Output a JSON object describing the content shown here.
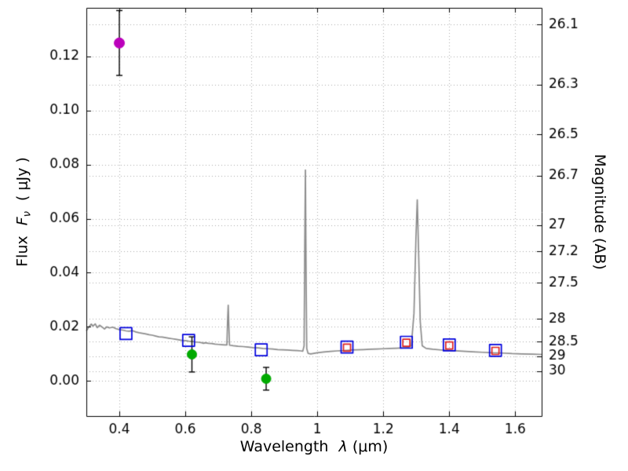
{
  "figure": {
    "xlabel": {
      "prefix": "Wavelength",
      "symbol": "λ",
      "suffix": "(μm)"
    },
    "ylabel_left": {
      "prefix": "Flux",
      "symbol": "F",
      "symbol_sub": "ν",
      "suffix": "( μJy )"
    },
    "ylabel_right": "Magnitude (AB)"
  },
  "chart_data": {
    "type": "line+scatter",
    "title": "",
    "xlabel": "Wavelength λ (μm)",
    "ylabel": "Flux Fν ( μJy )",
    "ylabel_right": "Magnitude (AB)",
    "xlim": [
      0.3,
      1.68
    ],
    "ylim": [
      -0.013,
      0.138
    ],
    "grid": true,
    "mag_zero_point": 23.9,
    "x_ticks": [
      {
        "v": 0.4,
        "label": "0.4"
      },
      {
        "v": 0.6,
        "label": "0.6"
      },
      {
        "v": 0.8,
        "label": "0.8"
      },
      {
        "v": 1.0,
        "label": "1"
      },
      {
        "v": 1.2,
        "label": "1.2"
      },
      {
        "v": 1.4,
        "label": "1.4"
      },
      {
        "v": 1.6,
        "label": "1.6"
      }
    ],
    "y_ticks_left": [
      {
        "v": 0.0,
        "label": "0.00"
      },
      {
        "v": 0.02,
        "label": "0.02"
      },
      {
        "v": 0.04,
        "label": "0.04"
      },
      {
        "v": 0.06,
        "label": "0.06"
      },
      {
        "v": 0.08,
        "label": "0.08"
      },
      {
        "v": 0.1,
        "label": "0.10"
      },
      {
        "v": 0.12,
        "label": "0.12"
      }
    ],
    "y_ticks_right": [
      {
        "v": 26.1,
        "label": "26.1"
      },
      {
        "v": 26.3,
        "label": "26.3"
      },
      {
        "v": 26.5,
        "label": "26.5"
      },
      {
        "v": 26.7,
        "label": "26.7"
      },
      {
        "v": 27.0,
        "label": "27"
      },
      {
        "v": 27.2,
        "label": "27.2"
      },
      {
        "v": 27.5,
        "label": "27.5"
      },
      {
        "v": 28.0,
        "label": "28"
      },
      {
        "v": 28.5,
        "label": "28.5"
      },
      {
        "v": 29.0,
        "label": "29"
      },
      {
        "v": 30.0,
        "label": "30"
      }
    ],
    "spectrum": {
      "name": "model-spectrum",
      "color": "#8c8c8c",
      "points": [
        [
          0.3,
          0.0185
        ],
        [
          0.308,
          0.02
        ],
        [
          0.315,
          0.021
        ],
        [
          0.32,
          0.0203
        ],
        [
          0.327,
          0.0211
        ],
        [
          0.333,
          0.0197
        ],
        [
          0.34,
          0.0206
        ],
        [
          0.348,
          0.0199
        ],
        [
          0.355,
          0.0192
        ],
        [
          0.362,
          0.02
        ],
        [
          0.37,
          0.0196
        ],
        [
          0.38,
          0.0199
        ],
        [
          0.39,
          0.0193
        ],
        [
          0.4,
          0.019
        ],
        [
          0.41,
          0.0188
        ],
        [
          0.42,
          0.0185
        ],
        [
          0.43,
          0.0184
        ],
        [
          0.44,
          0.0186
        ],
        [
          0.45,
          0.0181
        ],
        [
          0.46,
          0.0178
        ],
        [
          0.47,
          0.0176
        ],
        [
          0.48,
          0.0174
        ],
        [
          0.49,
          0.0171
        ],
        [
          0.5,
          0.0169
        ],
        [
          0.51,
          0.0166
        ],
        [
          0.52,
          0.0163
        ],
        [
          0.53,
          0.0162
        ],
        [
          0.54,
          0.016
        ],
        [
          0.55,
          0.0158
        ],
        [
          0.56,
          0.0156
        ],
        [
          0.57,
          0.0154
        ],
        [
          0.58,
          0.0152
        ],
        [
          0.59,
          0.015
        ],
        [
          0.6,
          0.0149
        ],
        [
          0.61,
          0.0147
        ],
        [
          0.62,
          0.0146
        ],
        [
          0.63,
          0.0144
        ],
        [
          0.64,
          0.0143
        ],
        [
          0.65,
          0.0141
        ],
        [
          0.655,
          0.0139
        ],
        [
          0.66,
          0.0141
        ],
        [
          0.67,
          0.0139
        ],
        [
          0.68,
          0.0138
        ],
        [
          0.69,
          0.0136
        ],
        [
          0.7,
          0.0135
        ],
        [
          0.71,
          0.0134
        ],
        [
          0.72,
          0.0133
        ],
        [
          0.726,
          0.0133
        ],
        [
          0.728,
          0.022
        ],
        [
          0.73,
          0.028
        ],
        [
          0.732,
          0.02
        ],
        [
          0.734,
          0.0132
        ],
        [
          0.745,
          0.013
        ],
        [
          0.76,
          0.0128
        ],
        [
          0.775,
          0.0127
        ],
        [
          0.79,
          0.0125
        ],
        [
          0.805,
          0.0123
        ],
        [
          0.82,
          0.0122
        ],
        [
          0.835,
          0.012
        ],
        [
          0.85,
          0.0119
        ],
        [
          0.865,
          0.0118
        ],
        [
          0.88,
          0.0116
        ],
        [
          0.895,
          0.0115
        ],
        [
          0.91,
          0.0114
        ],
        [
          0.925,
          0.0113
        ],
        [
          0.94,
          0.0112
        ],
        [
          0.95,
          0.0111
        ],
        [
          0.956,
          0.011
        ],
        [
          0.96,
          0.013
        ],
        [
          0.962,
          0.05
        ],
        [
          0.964,
          0.078
        ],
        [
          0.966,
          0.04
        ],
        [
          0.968,
          0.012
        ],
        [
          0.972,
          0.0102
        ],
        [
          0.98,
          0.01
        ],
        [
          0.99,
          0.0102
        ],
        [
          1.0,
          0.0104
        ],
        [
          1.02,
          0.0107
        ],
        [
          1.04,
          0.0109
        ],
        [
          1.06,
          0.0111
        ],
        [
          1.08,
          0.0112
        ],
        [
          1.1,
          0.0114
        ],
        [
          1.12,
          0.0115
        ],
        [
          1.14,
          0.0116
        ],
        [
          1.16,
          0.0117
        ],
        [
          1.18,
          0.0118
        ],
        [
          1.2,
          0.0119
        ],
        [
          1.22,
          0.012
        ],
        [
          1.24,
          0.0121
        ],
        [
          1.26,
          0.0122
        ],
        [
          1.275,
          0.0123
        ],
        [
          1.285,
          0.013
        ],
        [
          1.293,
          0.025
        ],
        [
          1.299,
          0.053
        ],
        [
          1.303,
          0.067
        ],
        [
          1.307,
          0.048
        ],
        [
          1.312,
          0.022
        ],
        [
          1.318,
          0.013
        ],
        [
          1.33,
          0.012
        ],
        [
          1.35,
          0.0117
        ],
        [
          1.38,
          0.0114
        ],
        [
          1.41,
          0.0112
        ],
        [
          1.44,
          0.011
        ],
        [
          1.47,
          0.0108
        ],
        [
          1.5,
          0.0106
        ],
        [
          1.53,
          0.0104
        ],
        [
          1.56,
          0.0103
        ],
        [
          1.59,
          0.0101
        ],
        [
          1.62,
          0.01
        ],
        [
          1.65,
          0.0099
        ],
        [
          1.68,
          0.0098
        ]
      ]
    },
    "series": [
      {
        "name": "detection-magenta",
        "marker": "circle",
        "color": "#bb00bb",
        "size": 13,
        "points": [
          {
            "x": 0.4,
            "y": 0.125,
            "yerr": 0.012
          }
        ]
      },
      {
        "name": "detections-green",
        "marker": "circle",
        "color": "#00aa00",
        "size": 12,
        "points": [
          {
            "x": 0.62,
            "y": 0.0098,
            "yerr": 0.0065
          },
          {
            "x": 0.845,
            "y": 0.0008,
            "yerr": 0.0042
          }
        ]
      },
      {
        "name": "photometry-blue-squares",
        "marker": "square-open",
        "color": "#0000dd",
        "size": 15,
        "points": [
          {
            "x": 0.42,
            "y": 0.0175
          },
          {
            "x": 0.61,
            "y": 0.015
          },
          {
            "x": 0.83,
            "y": 0.0115
          },
          {
            "x": 1.09,
            "y": 0.0125
          },
          {
            "x": 1.27,
            "y": 0.0143
          },
          {
            "x": 1.4,
            "y": 0.0133
          },
          {
            "x": 1.54,
            "y": 0.0113
          }
        ]
      },
      {
        "name": "model-red-squares",
        "marker": "square-open",
        "color": "#dd2222",
        "size": 9,
        "points": [
          {
            "x": 1.09,
            "y": 0.0123
          },
          {
            "x": 1.27,
            "y": 0.0141
          },
          {
            "x": 1.4,
            "y": 0.0131
          },
          {
            "x": 1.54,
            "y": 0.0111
          }
        ]
      }
    ]
  }
}
